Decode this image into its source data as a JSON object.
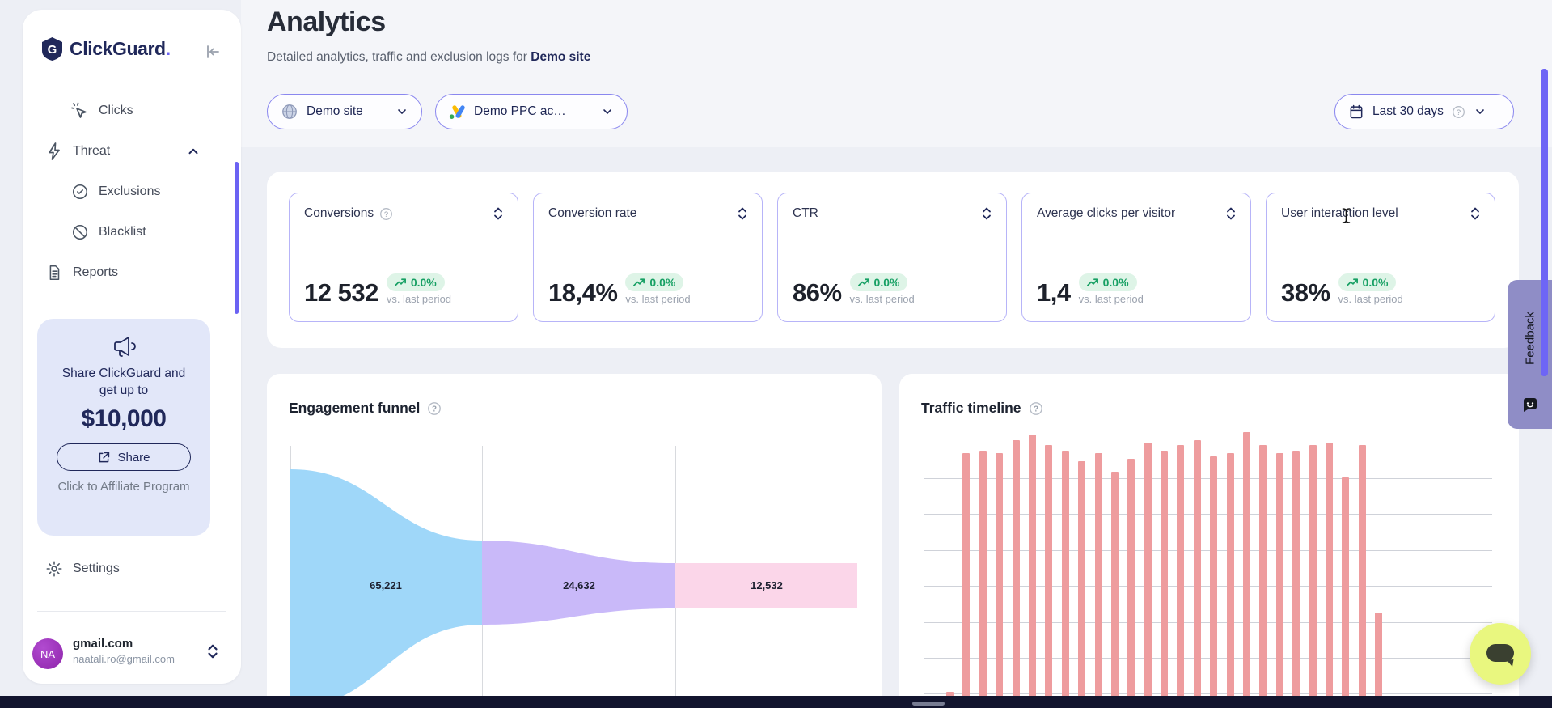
{
  "brand": {
    "name": "ClickGuard",
    "suffix": "."
  },
  "sidebar": {
    "items": [
      {
        "label": "Clicks"
      },
      {
        "label": "Threat"
      },
      {
        "label": "Exclusions"
      },
      {
        "label": "Blacklist"
      },
      {
        "label": "Reports"
      }
    ],
    "promo": {
      "line1": "Share ClickGuard and",
      "line2": "get up to",
      "amount": "$10,000",
      "button_label": "Share",
      "caption": "Click to Affiliate Program"
    },
    "settings_label": "Settings",
    "user": {
      "initials": "NA",
      "name": "gmail.com",
      "email": "naatali.ro@gmail.com"
    }
  },
  "header": {
    "title": "Analytics",
    "subtitle": "Detailed analytics, traffic and exclusion logs for",
    "subtitle_target": "Demo site"
  },
  "filters": {
    "site": "Demo site",
    "ppc_account": "Demo PPC ac…",
    "date_range": "Last 30 days"
  },
  "kpis": [
    {
      "title": "Conversions",
      "value": "12 532",
      "delta": "0.0%",
      "caption": "vs. last period"
    },
    {
      "title": "Conversion rate",
      "value": "18,4%",
      "delta": "0.0%",
      "caption": "vs. last period"
    },
    {
      "title": "CTR",
      "value": "86%",
      "delta": "0.0%",
      "caption": "vs. last period"
    },
    {
      "title": "Average clicks per visitor",
      "value": "1,4",
      "delta": "0.0%",
      "caption": "vs. last period"
    },
    {
      "title": "User interaction level",
      "value": "38%",
      "delta": "0.0%",
      "caption": "vs. last period"
    }
  ],
  "chart_data": [
    {
      "type": "area",
      "subtype": "funnel",
      "title": "Engagement funnel",
      "values": [
        65221,
        24632,
        12532
      ],
      "labels": [
        "65,221",
        "24,632",
        "12,532"
      ],
      "colors": [
        "#9fd7f9",
        "#c9b9f9",
        "#fbd6e9"
      ],
      "grid": "vertical dividers between stages, no axis labels"
    },
    {
      "type": "bar",
      "title": "Traffic timeline",
      "values": [
        2,
        92,
        93,
        92,
        97,
        99,
        95,
        93,
        89,
        92,
        85,
        90,
        96,
        93,
        95,
        97,
        91,
        92,
        100,
        95,
        92,
        93,
        95,
        96,
        83,
        95,
        32
      ],
      "value_scale": "relative height, % of tallest bar (axis labels not visible, chart cut off at bottom of viewport)",
      "bar_color": "#ee9c9e",
      "grid": "horizontal gridlines, no tick labels visible"
    }
  ],
  "feedback": {
    "label": "Feedback"
  },
  "colors": {
    "accent_indigo": "#6b62f3",
    "navy": "#20285a",
    "pill_border": "#8a87ef",
    "kpi_border": "#b7b4f8",
    "delta_green": "#17a064",
    "delta_green_bg": "#def4e7",
    "promo_bg": "#e2e7f9",
    "feedback_bg": "#8f8dc6",
    "chat_bg": "#e9f77f",
    "avatar_purple": "#9c27b0",
    "page_bg": "#edeff5",
    "bottom_strip": "#12152e"
  }
}
